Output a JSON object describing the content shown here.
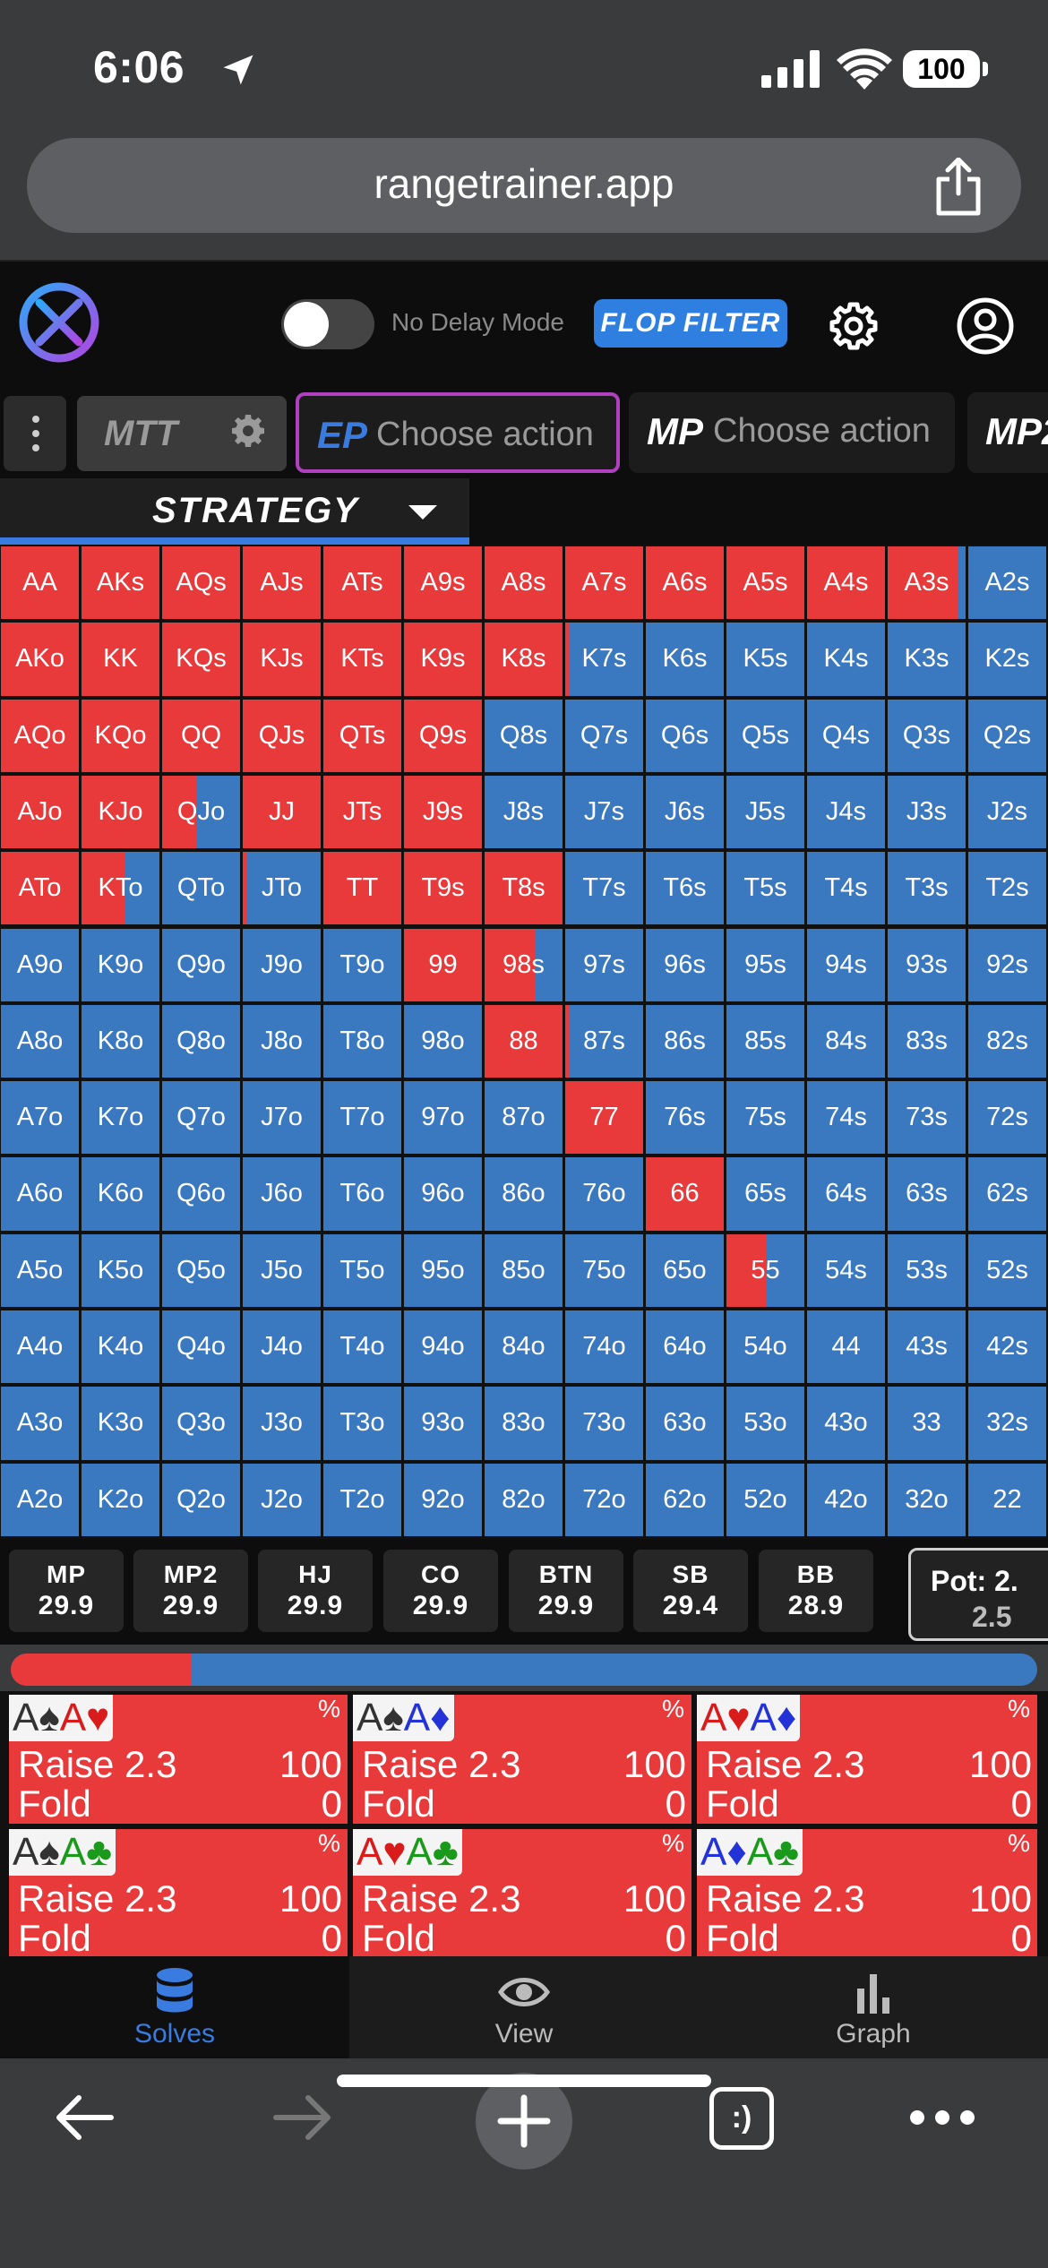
{
  "status_bar": {
    "time": "6:06",
    "battery": "100"
  },
  "browser": {
    "url": "rangetrainer.app",
    "tabs_glyph": ":)"
  },
  "header": {
    "no_delay_label": "No Delay Mode",
    "flop_filter_label": "FLOP FILTER"
  },
  "action_row": {
    "game_type": "MTT",
    "actions": [
      {
        "position": "EP",
        "text": "Choose action",
        "position_color": "#3a7be0"
      },
      {
        "position": "MP",
        "text": "Choose action",
        "position_color": "#ffffff"
      },
      {
        "position": "MP2",
        "text": "",
        "position_color": "#ffffff"
      }
    ]
  },
  "strategy_tab": {
    "label": "STRATEGY"
  },
  "colors": {
    "raise": "#e8393b",
    "fold": "#3a78c0"
  },
  "grid": {
    "ranks": [
      "A",
      "K",
      "Q",
      "J",
      "T",
      "9",
      "8",
      "7",
      "6",
      "5",
      "4",
      "3",
      "2"
    ],
    "raise_fraction": [
      [
        1,
        1,
        1,
        1,
        1,
        1,
        1,
        1,
        1,
        1,
        1,
        0.9,
        0
      ],
      [
        1,
        1,
        1,
        1,
        1,
        1,
        1,
        0.05,
        0,
        0,
        0,
        0,
        0
      ],
      [
        1,
        1,
        1,
        1,
        1,
        1,
        0,
        0,
        0,
        0,
        0,
        0,
        0
      ],
      [
        1,
        1,
        0.45,
        1,
        1,
        1,
        0,
        0,
        0,
        0,
        0,
        0,
        0
      ],
      [
        1,
        0.55,
        0,
        0.05,
        1,
        1,
        1,
        0,
        0,
        0,
        0,
        0,
        0
      ],
      [
        0,
        0,
        0,
        0,
        0,
        1,
        0.65,
        0,
        0,
        0,
        0,
        0,
        0
      ],
      [
        0,
        0,
        0,
        0,
        0,
        0,
        1,
        0.05,
        0,
        0,
        0,
        0,
        0
      ],
      [
        0,
        0,
        0,
        0,
        0,
        0,
        0,
        1,
        0,
        0,
        0,
        0,
        0
      ],
      [
        0,
        0,
        0,
        0,
        0,
        0,
        0,
        0,
        1,
        0,
        0,
        0,
        0
      ],
      [
        0,
        0,
        0,
        0,
        0,
        0,
        0,
        0,
        0,
        0.5,
        0,
        0,
        0
      ],
      [
        0,
        0,
        0,
        0,
        0,
        0,
        0,
        0,
        0,
        0,
        0,
        0,
        0
      ],
      [
        0,
        0,
        0,
        0,
        0,
        0,
        0,
        0,
        0,
        0,
        0,
        0,
        0
      ],
      [
        0,
        0,
        0,
        0,
        0,
        0,
        0,
        0,
        0,
        0,
        0,
        0,
        0
      ]
    ]
  },
  "positions": [
    {
      "name": "MP",
      "stack": "29.9"
    },
    {
      "name": "MP2",
      "stack": "29.9"
    },
    {
      "name": "HJ",
      "stack": "29.9"
    },
    {
      "name": "CO",
      "stack": "29.9"
    },
    {
      "name": "BTN",
      "stack": "29.9"
    },
    {
      "name": "SB",
      "stack": "29.4"
    },
    {
      "name": "BB",
      "stack": "28.9"
    }
  ],
  "pot": {
    "label": "Pot: 2.",
    "value": "2.5"
  },
  "frequency": {
    "raise_fraction": 0.176
  },
  "combos": [
    {
      "cards": [
        [
          "A",
          "♠"
        ],
        [
          "A",
          "♥"
        ]
      ],
      "pct": "%",
      "actions": [
        {
          "name": "Raise 2.3",
          "value": "100"
        },
        {
          "name": "Fold",
          "value": "0"
        }
      ]
    },
    {
      "cards": [
        [
          "A",
          "♠"
        ],
        [
          "A",
          "♦"
        ]
      ],
      "pct": "%",
      "actions": [
        {
          "name": "Raise 2.3",
          "value": "100"
        },
        {
          "name": "Fold",
          "value": "0"
        }
      ]
    },
    {
      "cards": [
        [
          "A",
          "♥"
        ],
        [
          "A",
          "♦"
        ]
      ],
      "pct": "%",
      "actions": [
        {
          "name": "Raise 2.3",
          "value": "100"
        },
        {
          "name": "Fold",
          "value": "0"
        }
      ]
    },
    {
      "cards": [
        [
          "A",
          "♠"
        ],
        [
          "A",
          "♣"
        ]
      ],
      "pct": "%",
      "actions": [
        {
          "name": "Raise 2.3",
          "value": "100"
        },
        {
          "name": "Fold",
          "value": "0"
        }
      ]
    },
    {
      "cards": [
        [
          "A",
          "♥"
        ],
        [
          "A",
          "♣"
        ]
      ],
      "pct": "%",
      "actions": [
        {
          "name": "Raise 2.3",
          "value": "100"
        },
        {
          "name": "Fold",
          "value": "0"
        }
      ]
    },
    {
      "cards": [
        [
          "A",
          "♦"
        ],
        [
          "A",
          "♣"
        ]
      ],
      "pct": "%",
      "actions": [
        {
          "name": "Raise 2.3",
          "value": "100"
        },
        {
          "name": "Fold",
          "value": "0"
        }
      ]
    }
  ],
  "suit_colors": {
    "♠": "#333333",
    "♥": "#d81b1b",
    "♦": "#2333d8",
    "♣": "#1a9a1a"
  },
  "bottom_tabs": [
    {
      "label": "Solves",
      "icon": "database-icon",
      "active": true
    },
    {
      "label": "View",
      "icon": "eye-icon",
      "active": false
    },
    {
      "label": "Graph",
      "icon": "bar-chart-icon",
      "active": false
    }
  ]
}
